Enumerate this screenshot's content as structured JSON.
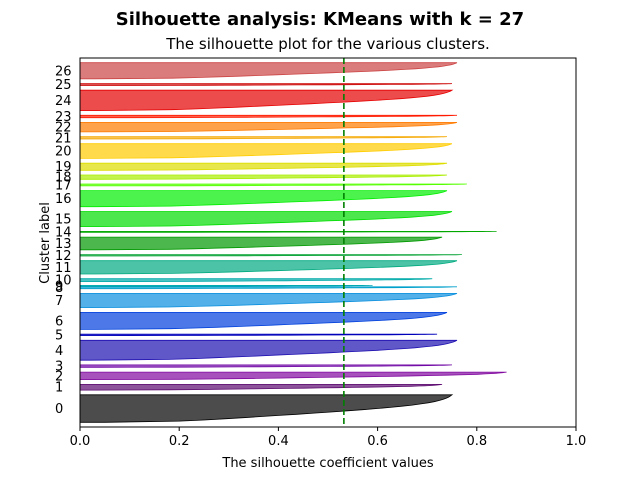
{
  "figure": {
    "suptitle": "Silhouette analysis: KMeans with k = 27"
  },
  "chart_data": {
    "type": "area",
    "title": "The silhouette plot for the various clusters.",
    "xlabel": "The silhouette coefficient values",
    "ylabel": "Cluster label",
    "xlim": [
      0,
      1
    ],
    "xticks": [
      "0.0",
      "0.2",
      "0.4",
      "0.6",
      "0.8",
      "1.0"
    ],
    "average_silhouette": 0.532,
    "average_line_color": "#008000",
    "clusters": [
      {
        "label": "0",
        "start": 10,
        "size": 58,
        "min": 0.05,
        "max": 0.75,
        "color": "#000000"
      },
      {
        "label": "1",
        "start": 78,
        "size": 12,
        "min": 0.03,
        "max": 0.73,
        "color": "#5d0b70"
      },
      {
        "label": "2",
        "start": 100,
        "size": 16,
        "min": 0.02,
        "max": 0.86,
        "color": "#8209a0"
      },
      {
        "label": "3",
        "start": 126,
        "size": 5,
        "min": 0.04,
        "max": 0.75,
        "color": "#7008a6"
      },
      {
        "label": "4",
        "start": 141,
        "size": 42,
        "min": 0.02,
        "max": 0.76,
        "color": "#1d0fb0"
      },
      {
        "label": "5",
        "start": 193,
        "size": 3,
        "min": 0.05,
        "max": 0.72,
        "color": "#0000bb"
      },
      {
        "label": "6",
        "start": 206,
        "size": 36,
        "min": 0.03,
        "max": 0.74,
        "color": "#0040dd"
      },
      {
        "label": "7",
        "start": 252,
        "size": 30,
        "min": 0.02,
        "max": 0.76,
        "color": "#0a8fde"
      },
      {
        "label": "8",
        "start": 292,
        "size": 4,
        "min": 0.04,
        "max": 0.76,
        "color": "#00a0cc"
      },
      {
        "label": "9",
        "start": 297,
        "size": 2,
        "min": 0.06,
        "max": 0.59,
        "color": "#00a8b0"
      },
      {
        "label": "10",
        "start": 307,
        "size": 6,
        "min": 0.05,
        "max": 0.71,
        "color": "#00aaaa"
      },
      {
        "label": "11",
        "start": 323,
        "size": 28,
        "min": 0.03,
        "max": 0.76,
        "color": "#00aa80"
      },
      {
        "label": "12",
        "start": 361,
        "size": 3,
        "min": 0.05,
        "max": 0.77,
        "color": "#00a030"
      },
      {
        "label": "13",
        "start": 374,
        "size": 27,
        "min": 0.03,
        "max": 0.73,
        "color": "#009900"
      },
      {
        "label": "14",
        "start": 411,
        "size": 2,
        "min": 0.06,
        "max": 0.84,
        "color": "#00a800"
      },
      {
        "label": "15",
        "start": 423,
        "size": 32,
        "min": 0.03,
        "max": 0.75,
        "color": "#00dd00"
      },
      {
        "label": "16",
        "start": 465,
        "size": 34,
        "min": 0.03,
        "max": 0.74,
        "color": "#00ee00"
      },
      {
        "label": "17",
        "start": 509,
        "size": 4,
        "min": 0.06,
        "max": 0.78,
        "color": "#55ff00"
      },
      {
        "label": "18",
        "start": 523,
        "size": 9,
        "min": 0.04,
        "max": 0.74,
        "color": "#aaee00"
      },
      {
        "label": "19",
        "start": 542,
        "size": 15,
        "min": 0.04,
        "max": 0.74,
        "color": "#dddd00"
      },
      {
        "label": "20",
        "start": 567,
        "size": 31,
        "min": 0.03,
        "max": 0.75,
        "color": "#ffcc00"
      },
      {
        "label": "21",
        "start": 608,
        "size": 5,
        "min": 0.05,
        "max": 0.74,
        "color": "#f5a800"
      },
      {
        "label": "22",
        "start": 623,
        "size": 20,
        "min": 0.03,
        "max": 0.76,
        "color": "#ff7b00"
      },
      {
        "label": "23",
        "start": 653,
        "size": 5,
        "min": 0.05,
        "max": 0.76,
        "color": "#ff1a00"
      },
      {
        "label": "24",
        "start": 668,
        "size": 43,
        "min": 0.03,
        "max": 0.75,
        "color": "#e60000"
      },
      {
        "label": "25",
        "start": 721,
        "size": 4,
        "min": 0.05,
        "max": 0.75,
        "color": "#cc0000"
      },
      {
        "label": "26",
        "start": 735,
        "size": 34,
        "min": 0.03,
        "max": 0.76,
        "color": "#cc4444"
      }
    ],
    "ylim": [
      0,
      779
    ],
    "grid": false,
    "legend": "none"
  }
}
